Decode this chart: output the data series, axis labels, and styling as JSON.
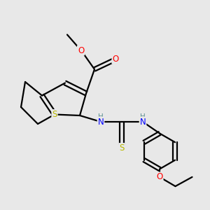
{
  "background_color": "#e8e8e8",
  "atom_colors": {
    "C": "#000000",
    "H": "#5c9090",
    "N": "#0000ff",
    "O": "#ff0000",
    "S": "#b8b800"
  },
  "bond_color": "#000000",
  "bond_width": 1.6,
  "figsize": [
    3.0,
    3.0
  ],
  "dpi": 100
}
